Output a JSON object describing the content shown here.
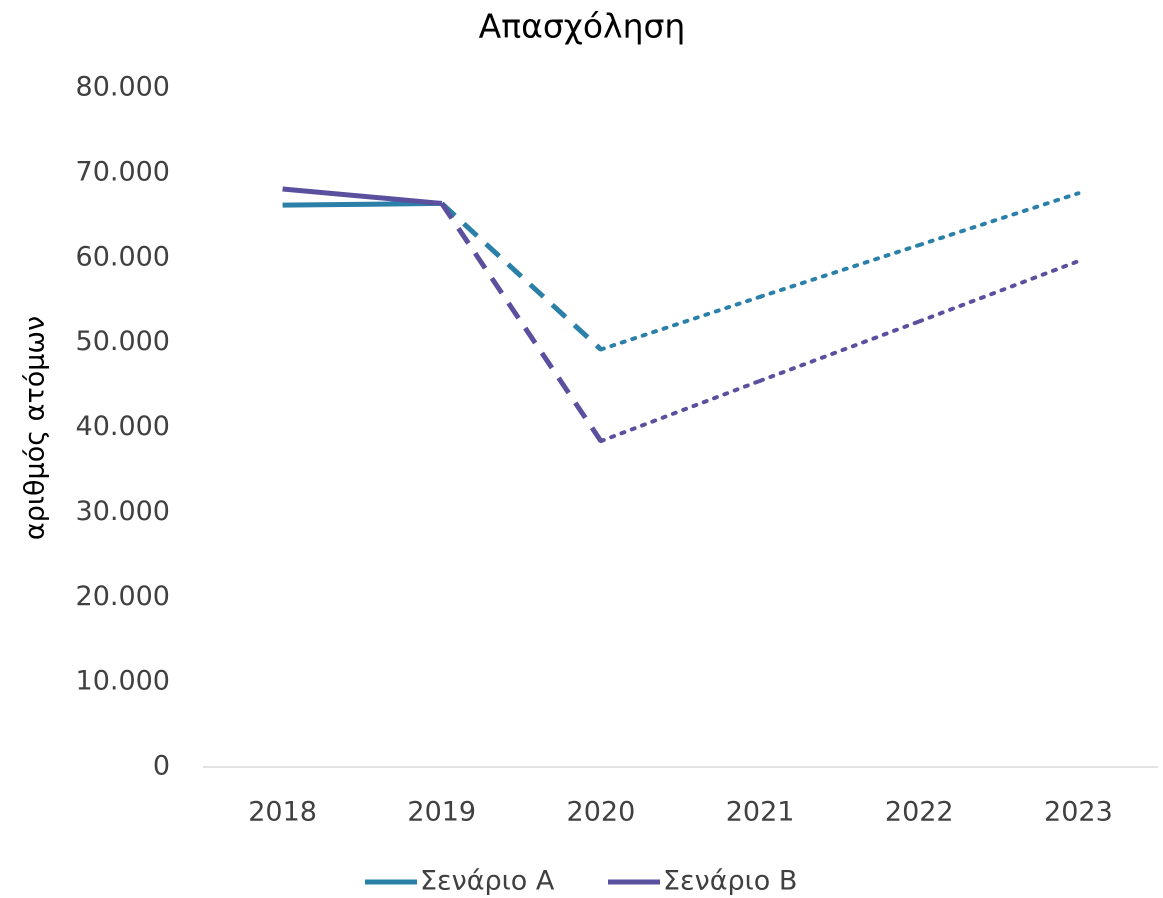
{
  "chart_data": {
    "type": "line",
    "title": "Απασχόληση",
    "y_label": "αριθμός ατόμων",
    "categories": [
      "2018",
      "2019",
      "2020",
      "2021",
      "2022",
      "2023"
    ],
    "series": [
      {
        "name": "Σενάριο Α",
        "color": "#2a80a8",
        "values": [
          66200,
          66400,
          49200,
          55400,
          61500,
          67600
        ]
      },
      {
        "name": "Σενάριο Β",
        "color": "#5a509e",
        "values": [
          68100,
          66400,
          38400,
          45500,
          52500,
          59600
        ]
      }
    ],
    "segment_styles": [
      "solid",
      "dashed",
      "dotted",
      "dotted",
      "dotted"
    ],
    "ylim": [
      0,
      80000
    ],
    "yticks": [
      0,
      {
        "value": 10000,
        "label": "10.000"
      },
      {
        "value": 20000,
        "label": "20.000"
      },
      {
        "value": 30000,
        "label": "30.000"
      },
      {
        "value": 40000,
        "label": "40.000"
      },
      {
        "value": 50000,
        "label": "50.000"
      },
      {
        "value": 60000,
        "label": "60.000"
      },
      {
        "value": 70000,
        "label": "70.000"
      },
      {
        "value": 80000,
        "label": "80.000"
      }
    ],
    "grid": false,
    "legend": "bottom"
  }
}
